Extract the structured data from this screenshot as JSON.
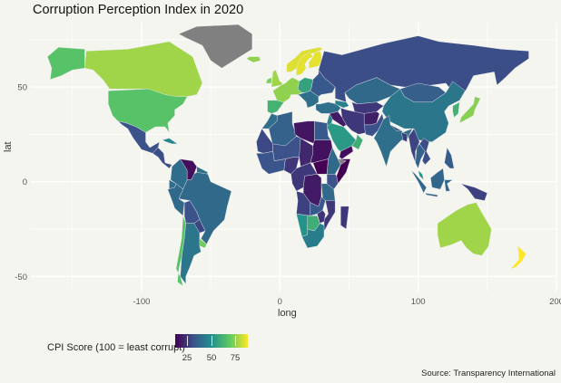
{
  "chart": {
    "title": "Corruption Perception Index in 2020",
    "xlabel": "long",
    "ylabel": "lat",
    "source": "Source: Transparency International"
  },
  "legend": {
    "title": "CPI Score (100 = least corrupt)",
    "ticks": [
      "25",
      "50",
      "75"
    ]
  },
  "chart_data": {
    "type": "heatmap",
    "xlim": [
      -180,
      200
    ],
    "ylim": [
      -58,
      84
    ],
    "x_ticks": [
      -100,
      0,
      100,
      200
    ],
    "y_ticks": [
      -50,
      0,
      50
    ],
    "x_tick_labels": [
      "-100",
      "0",
      "100",
      "200"
    ],
    "y_tick_labels": [
      "-50",
      "0",
      "50"
    ],
    "grid": true,
    "colorscale": "viridis",
    "color_range": [
      12,
      88
    ],
    "no_data_color": "#808080",
    "legend_placement": "bottom-left",
    "regions": [
      {
        "name": "Greenland",
        "value": null
      },
      {
        "name": "Canada",
        "value": 77
      },
      {
        "name": "Alaska",
        "value": 67
      },
      {
        "name": "United States",
        "value": 67
      },
      {
        "name": "Mexico",
        "value": 31
      },
      {
        "name": "Central America",
        "value": 30
      },
      {
        "name": "Cuba",
        "value": 47
      },
      {
        "name": "Colombia",
        "value": 39
      },
      {
        "name": "Venezuela",
        "value": 15
      },
      {
        "name": "Guianas",
        "value": 40
      },
      {
        "name": "Brazil",
        "value": 38
      },
      {
        "name": "Ecuador",
        "value": 39
      },
      {
        "name": "Peru",
        "value": 38
      },
      {
        "name": "Bolivia",
        "value": 31
      },
      {
        "name": "Paraguay",
        "value": 28
      },
      {
        "name": "Uruguay",
        "value": 71
      },
      {
        "name": "Chile",
        "value": 67
      },
      {
        "name": "Argentina",
        "value": 42
      },
      {
        "name": "Iceland",
        "value": 75
      },
      {
        "name": "Ireland",
        "value": 72
      },
      {
        "name": "United Kingdom",
        "value": 77
      },
      {
        "name": "Norway",
        "value": 84
      },
      {
        "name": "Sweden",
        "value": 85
      },
      {
        "name": "Finland",
        "value": 85
      },
      {
        "name": "Iberia",
        "value": 62
      },
      {
        "name": "Western Europe",
        "value": 75
      },
      {
        "name": "Central Europe",
        "value": 56
      },
      {
        "name": "Eastern Europe",
        "value": 33
      },
      {
        "name": "Balkans",
        "value": 40
      },
      {
        "name": "Russia",
        "value": 30
      },
      {
        "name": "Kazakhstan",
        "value": 38
      },
      {
        "name": "Central Asia",
        "value": 25
      },
      {
        "name": "Mongolia",
        "value": 35
      },
      {
        "name": "China",
        "value": 42
      },
      {
        "name": "Korea",
        "value": 61
      },
      {
        "name": "Japan",
        "value": 74
      },
      {
        "name": "Turkey",
        "value": 40
      },
      {
        "name": "Caucasus",
        "value": 45
      },
      {
        "name": "Iran",
        "value": 25
      },
      {
        "name": "Iraq Syria",
        "value": 18
      },
      {
        "name": "Levant",
        "value": 45
      },
      {
        "name": "Saudi Arabia",
        "value": 53
      },
      {
        "name": "Yemen",
        "value": 15
      },
      {
        "name": "Oman UAE",
        "value": 60
      },
      {
        "name": "Afghanistan",
        "value": 19
      },
      {
        "name": "Pakistan",
        "value": 31
      },
      {
        "name": "India",
        "value": 40
      },
      {
        "name": "Nepal",
        "value": 33
      },
      {
        "name": "Bangladesh",
        "value": 26
      },
      {
        "name": "Myanmar",
        "value": 28
      },
      {
        "name": "Thailand",
        "value": 36
      },
      {
        "name": "Indochina",
        "value": 30
      },
      {
        "name": "Malaysia",
        "value": 51
      },
      {
        "name": "Sumatra",
        "value": 37
      },
      {
        "name": "Java",
        "value": 37
      },
      {
        "name": "Borneo",
        "value": 37
      },
      {
        "name": "Sulawesi",
        "value": 37
      },
      {
        "name": "Philippines",
        "value": 34
      },
      {
        "name": "New Guinea",
        "value": 27
      },
      {
        "name": "Australia",
        "value": 77
      },
      {
        "name": "New Zealand",
        "value": 88
      },
      {
        "name": "Morocco",
        "value": 40
      },
      {
        "name": "Algeria",
        "value": 36
      },
      {
        "name": "Libya",
        "value": 17
      },
      {
        "name": "Egypt",
        "value": 33
      },
      {
        "name": "Mauritania",
        "value": 29
      },
      {
        "name": "Mali Niger",
        "value": 31
      },
      {
        "name": "Chad",
        "value": 21
      },
      {
        "name": "Sudan",
        "value": 16
      },
      {
        "name": "West Africa",
        "value": 32
      },
      {
        "name": "Nigeria",
        "value": 25
      },
      {
        "name": "Central Africa",
        "value": 25
      },
      {
        "name": "South Sudan",
        "value": 12
      },
      {
        "name": "Ethiopia",
        "value": 38
      },
      {
        "name": "Somalia",
        "value": 12
      },
      {
        "name": "Somaliland",
        "value": null
      },
      {
        "name": "Kenya",
        "value": 31
      },
      {
        "name": "DR Congo",
        "value": 18
      },
      {
        "name": "Tanzania",
        "value": 38
      },
      {
        "name": "Angola",
        "value": 27
      },
      {
        "name": "Zambia",
        "value": 33
      },
      {
        "name": "Mozambique",
        "value": 25
      },
      {
        "name": "Namibia",
        "value": 51
      },
      {
        "name": "Botswana",
        "value": 60
      },
      {
        "name": "Zimbabwe",
        "value": 24
      },
      {
        "name": "South Africa",
        "value": 44
      },
      {
        "name": "Madagascar",
        "value": 25
      }
    ]
  }
}
